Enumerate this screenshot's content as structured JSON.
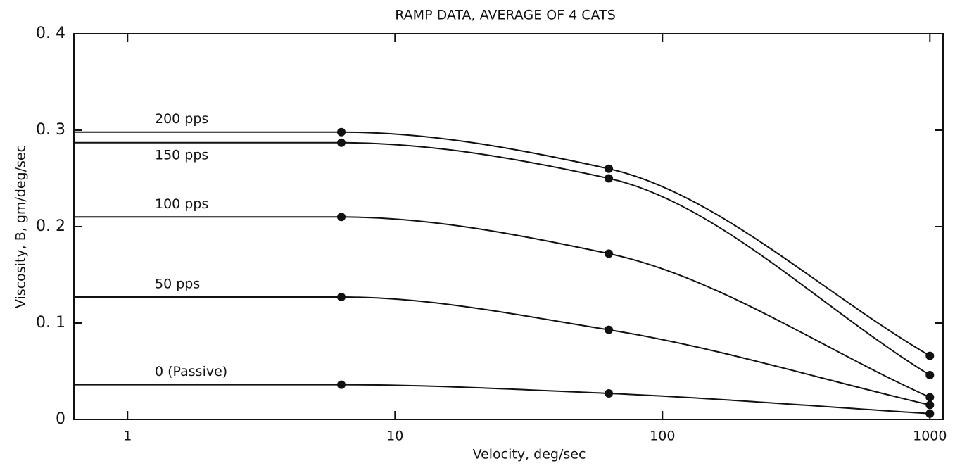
{
  "chart_data": {
    "type": "line",
    "title": "RAMP DATA, AVERAGE OF 4 CATS",
    "x_label": "Velocity, deg/sec",
    "y_label": "Viscosity, B, gm/deg/sec",
    "log_x": true,
    "color": "#111111",
    "x": [
      6.3,
      63,
      1000
    ],
    "series": [
      {
        "name": "200 pps",
        "values": [
          0.298,
          0.26,
          0.066
        ]
      },
      {
        "name": "150 pps",
        "values": [
          0.287,
          0.25,
          0.046
        ]
      },
      {
        "name": "100 pps",
        "values": [
          0.21,
          0.172,
          0.023
        ]
      },
      {
        "name": "50 pps",
        "values": [
          0.127,
          0.093,
          0.015
        ]
      },
      {
        "name": "0 (Passive)",
        "values": [
          0.036,
          0.027,
          0.006
        ]
      }
    ],
    "xlim": [
      0.63,
      1120
    ],
    "xticks": [
      1,
      10,
      100,
      1000
    ],
    "ylim": [
      0,
      0.4
    ],
    "yticks": [
      0,
      {
        "value": 0.1,
        "label": "0. 1"
      },
      {
        "value": 0.2,
        "label": "0. 2"
      },
      {
        "value": 0.3,
        "label": "0. 3"
      },
      {
        "value": 0.4,
        "label": "0. 4"
      }
    ]
  }
}
